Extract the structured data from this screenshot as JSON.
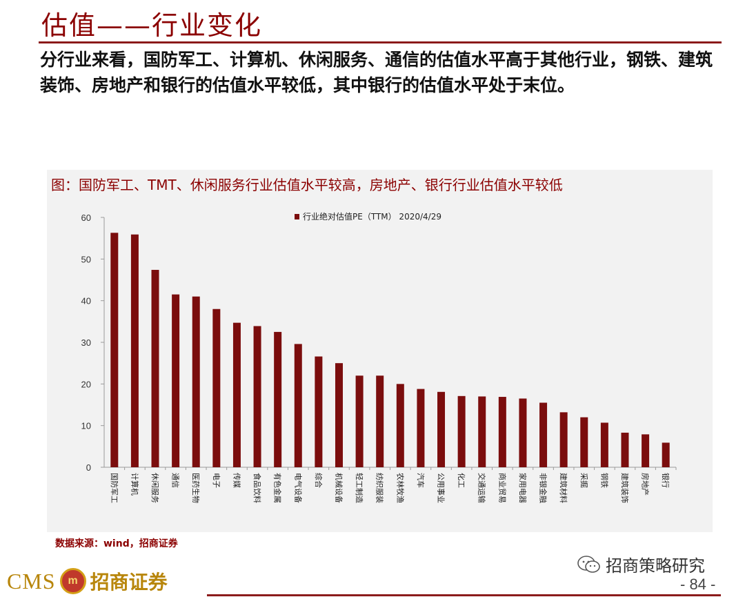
{
  "page": {
    "title": "估值——行业变化",
    "intro": "分行业来看，国防军工、计算机、休闲服务、通信的估值水平高于其他行业，钢铁、建筑装饰、房地产和银行的估值水平较低，其中银行的估值水平处于末位。",
    "source": "数据来源：wind，招商证券",
    "page_number": "- 84 -",
    "wechat_label": "招商策略研究",
    "logo_text": "CMS",
    "logo_cn": "招商证券"
  },
  "colors": {
    "accent": "#8b0000",
    "bar": "#7b0d0d",
    "panel": "#f2f2f2"
  },
  "chart_data": {
    "type": "bar",
    "title": "图：国防军工、TMT、休闲服务行业估值水平较高，房地产、银行行业估值水平较低",
    "legend": "行业绝对估值PE（TTM） 2020/4/29",
    "legend_position": "top-center",
    "grid": false,
    "ylim": [
      0,
      60
    ],
    "yticks": [
      0,
      10,
      20,
      30,
      40,
      50,
      60
    ],
    "categories": [
      "国防军工",
      "计算机",
      "休闲服务",
      "通信",
      "医药生物",
      "电子",
      "传媒",
      "食品饮料",
      "有色金属",
      "电气设备",
      "综合",
      "机械设备",
      "轻工制造",
      "纺织服装",
      "农林牧渔",
      "汽车",
      "公用事业",
      "化工",
      "交通运输",
      "商业贸易",
      "家用电器",
      "非银金融",
      "建筑材料",
      "采掘",
      "钢铁",
      "建筑装饰",
      "房地产",
      "银行"
    ],
    "series": [
      {
        "name": "行业绝对估值PE（TTM） 2020/4/29",
        "values": [
          56.3,
          55.9,
          47.4,
          41.5,
          41.0,
          38.0,
          34.7,
          33.9,
          32.5,
          29.6,
          26.6,
          25.0,
          22.0,
          22.0,
          20.0,
          18.8,
          18.1,
          17.1,
          17.0,
          16.9,
          16.5,
          15.5,
          13.2,
          12.0,
          10.7,
          8.3,
          7.9,
          5.9
        ]
      }
    ]
  }
}
